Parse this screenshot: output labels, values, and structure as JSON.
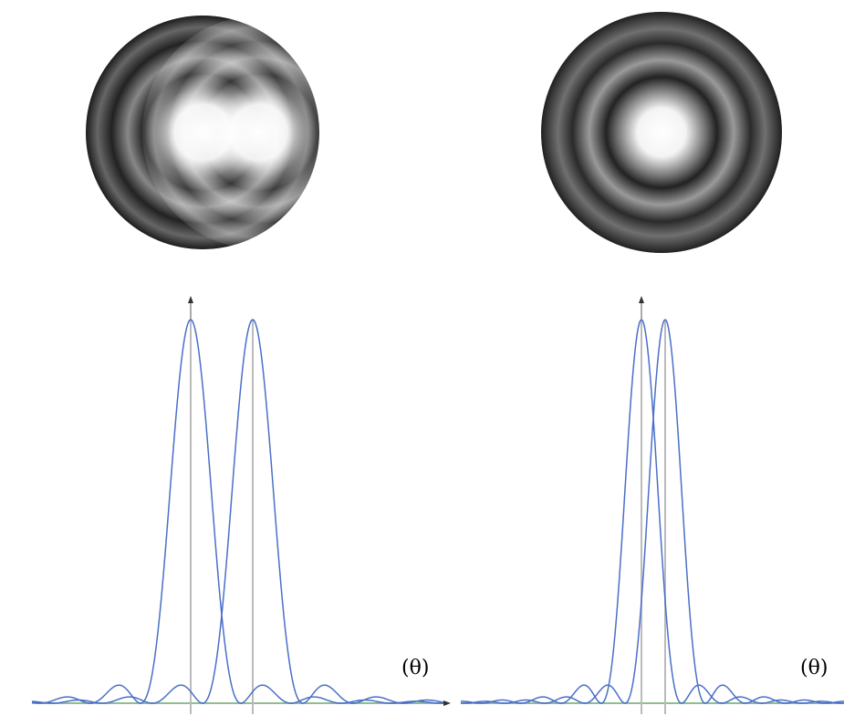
{
  "panels": [
    {
      "axis_label": "(θ)"
    },
    {
      "axis_label": "(θ)"
    }
  ]
}
